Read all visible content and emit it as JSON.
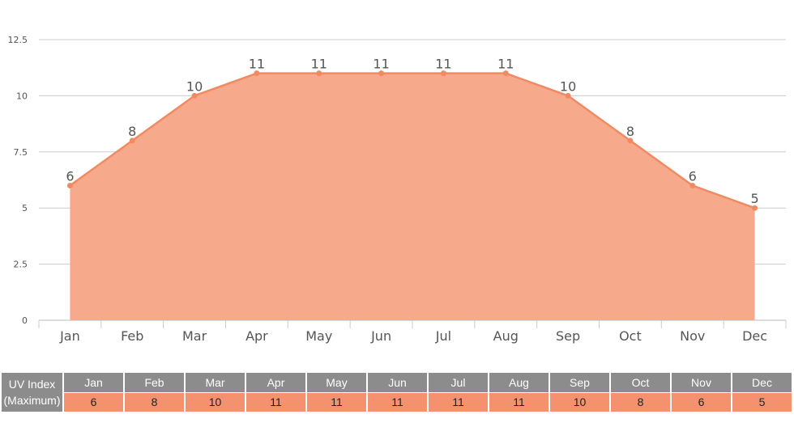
{
  "chart_data": {
    "type": "area",
    "categories": [
      "Jan",
      "Feb",
      "Mar",
      "Apr",
      "May",
      "Jun",
      "Jul",
      "Aug",
      "Sep",
      "Oct",
      "Nov",
      "Dec"
    ],
    "values": [
      6,
      8,
      10,
      11,
      11,
      11,
      11,
      11,
      10,
      8,
      6,
      5
    ],
    "yticks": [
      "0",
      "2.5",
      "5",
      "7.5",
      "10",
      "12.5"
    ],
    "ylim": [
      0,
      12.5
    ],
    "grid": true,
    "colors": {
      "fill": "#f7a98c",
      "line": "#f08a63",
      "grid": "#cccccc"
    }
  },
  "table": {
    "header_line1": "UV Index",
    "header_line2": "(Maximum)",
    "months": [
      "Jan",
      "Feb",
      "Mar",
      "Apr",
      "May",
      "Jun",
      "Jul",
      "Aug",
      "Sep",
      "Oct",
      "Nov",
      "Dec"
    ],
    "values": [
      "6",
      "8",
      "10",
      "11",
      "11",
      "11",
      "11",
      "11",
      "10",
      "8",
      "6",
      "5"
    ],
    "colors": {
      "header": "#8c8c8c",
      "value": "#f4926f"
    }
  }
}
